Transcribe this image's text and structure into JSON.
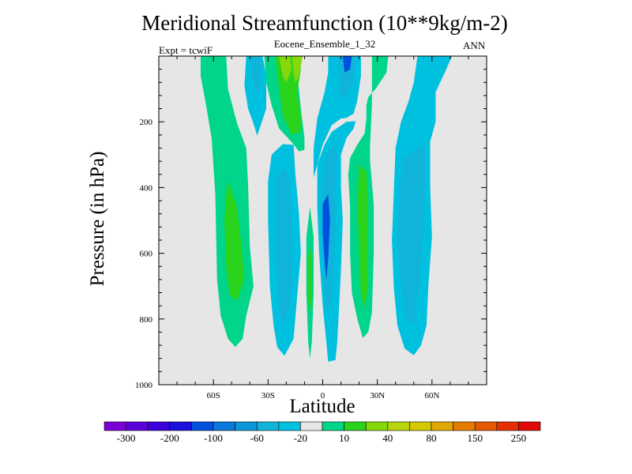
{
  "chart_data": {
    "type": "heatmap",
    "title": "Meridional Streamfunction (10**9kg/m-2)",
    "subtitle": "Eocene_Ensemble_1_32",
    "left_note": "Expt = tcwiF",
    "right_note": "ANN",
    "xlabel": "Latitude",
    "ylabel": "Pressure (in hPa)",
    "xlim": [
      -90,
      90
    ],
    "ylim": [
      1000,
      0
    ],
    "y_reversed": true,
    "grid": false,
    "background_color": "#e6e6e6",
    "x_ticks": [
      {
        "value": -60,
        "label": "60S"
      },
      {
        "value": -30,
        "label": "30S"
      },
      {
        "value": 0,
        "label": "0"
      },
      {
        "value": 30,
        "label": "30N"
      },
      {
        "value": 60,
        "label": "60N"
      }
    ],
    "y_ticks": [
      {
        "value": 200,
        "label": "200"
      },
      {
        "value": 400,
        "label": "400"
      },
      {
        "value": 600,
        "label": "600"
      },
      {
        "value": 800,
        "label": "800"
      },
      {
        "value": 1000,
        "label": "1000"
      }
    ],
    "colorbar": {
      "colors": [
        "#7a00d6",
        "#5b00d8",
        "#3c00da",
        "#1c10dc",
        "#0050e0",
        "#0a78dc",
        "#0a98d8",
        "#10b4d8",
        "#00c0e0",
        "#e6e6e6",
        "#00d58a",
        "#2ad41c",
        "#86d80c",
        "#b8d40c",
        "#d4c800",
        "#e0a800",
        "#e47c00",
        "#e45800",
        "#e43000",
        "#e00808"
      ],
      "tick_labels": [
        "-300",
        "-200",
        "-100",
        "-60",
        "-20",
        "10",
        "40",
        "80",
        "150",
        "250"
      ]
    },
    "regions": [
      {
        "level": 10,
        "color": "#00d58a",
        "points": [
          [
            -67,
            0
          ],
          [
            -53,
            0
          ],
          [
            -52,
            100
          ],
          [
            -47,
            205
          ],
          [
            -42,
            280
          ],
          [
            -41,
            390
          ],
          [
            -40,
            580
          ],
          [
            -38,
            700
          ],
          [
            -42,
            790
          ],
          [
            -44,
            860
          ],
          [
            -48,
            885
          ],
          [
            -52,
            860
          ],
          [
            -56,
            790
          ],
          [
            -58,
            680
          ],
          [
            -59,
            420
          ],
          [
            -61,
            250
          ],
          [
            -64,
            150
          ],
          [
            -67,
            60
          ]
        ]
      },
      {
        "level": 40,
        "color": "#2ad41c",
        "points": [
          [
            -52,
            380
          ],
          [
            -47,
            460
          ],
          [
            -45,
            560
          ],
          [
            -43,
            675
          ],
          [
            -47,
            745
          ],
          [
            -51,
            728
          ],
          [
            -53,
            650
          ],
          [
            -54,
            500
          ],
          [
            -53,
            420
          ]
        ]
      },
      {
        "level": -20,
        "color": "#00c0e0",
        "points": [
          [
            -42,
            0
          ],
          [
            -33,
            0
          ],
          [
            -31,
            60
          ],
          [
            -31,
            160
          ],
          [
            -34,
            210
          ],
          [
            -36,
            242
          ],
          [
            -38,
            205
          ],
          [
            -41,
            160
          ],
          [
            -43,
            90
          ]
        ]
      },
      {
        "level": -60,
        "color": "#10b4d8",
        "points": [
          [
            -40,
            0
          ],
          [
            -34,
            0
          ],
          [
            -34,
            60
          ],
          [
            -35,
            108
          ],
          [
            -37,
            105
          ],
          [
            -39,
            60
          ]
        ]
      },
      {
        "level": 10,
        "color": "#00d58a",
        "points": [
          [
            -32,
            0
          ],
          [
            -15,
            0
          ],
          [
            -14,
            50
          ],
          [
            -12,
            160
          ],
          [
            -10,
            250
          ],
          [
            -10,
            285
          ],
          [
            -13,
            290
          ],
          [
            -17,
            262
          ],
          [
            -24,
            220
          ],
          [
            -28,
            150
          ],
          [
            -31,
            80
          ]
        ]
      },
      {
        "level": 40,
        "color": "#2ad41c",
        "points": [
          [
            -26,
            0
          ],
          [
            -13,
            0
          ],
          [
            -12,
            40
          ],
          [
            -14,
            110
          ],
          [
            -12,
            180
          ],
          [
            -12,
            230
          ],
          [
            -17,
            240
          ],
          [
            -22,
            180
          ],
          [
            -24,
            100
          ]
        ]
      },
      {
        "level": 80,
        "color": "#86d80c",
        "points": [
          [
            -24,
            0
          ],
          [
            -18,
            0
          ],
          [
            -17,
            40
          ],
          [
            -20,
            80
          ],
          [
            -22,
            60
          ]
        ]
      },
      {
        "level": 80,
        "color": "#86d80c",
        "points": [
          [
            -17,
            0
          ],
          [
            -11,
            0
          ],
          [
            -13,
            60
          ],
          [
            -15,
            80
          ],
          [
            -16,
            50
          ]
        ]
      },
      {
        "level": 80,
        "color": "#86d80c",
        "points": [
          [
            7,
            0
          ],
          [
            10,
            0
          ],
          [
            10,
            5
          ],
          [
            8,
            5
          ]
        ]
      },
      {
        "level": -20,
        "color": "#00c0e0",
        "points": [
          [
            -28,
            300
          ],
          [
            -22,
            268
          ],
          [
            -16,
            270
          ],
          [
            -15,
            360
          ],
          [
            -13,
            480
          ],
          [
            -12,
            600
          ],
          [
            -14,
            730
          ],
          [
            -16,
            860
          ],
          [
            -21,
            912
          ],
          [
            -25,
            885
          ],
          [
            -27,
            820
          ],
          [
            -29,
            700
          ],
          [
            -30,
            500
          ],
          [
            -30,
            380
          ]
        ]
      },
      {
        "level": -60,
        "color": "#10b4d8",
        "points": [
          [
            -25,
            360
          ],
          [
            -21,
            340
          ],
          [
            -18,
            380
          ],
          [
            -17,
            520
          ],
          [
            -17,
            650
          ],
          [
            -18,
            760
          ],
          [
            -22,
            820
          ],
          [
            -24,
            780
          ],
          [
            -25,
            650
          ],
          [
            -26,
            520
          ]
        ]
      },
      {
        "level": 10,
        "color": "#00d58a",
        "points": [
          [
            -9,
            550
          ],
          [
            -7,
            460
          ],
          [
            -5,
            550
          ],
          [
            -5,
            720
          ],
          [
            -6,
            870
          ],
          [
            -7,
            920
          ],
          [
            -8,
            870
          ],
          [
            -9,
            720
          ]
        ]
      },
      {
        "level": 40,
        "color": "#2ad41c",
        "points": [
          [
            -8,
            610
          ],
          [
            -7,
            580
          ],
          [
            -6,
            620
          ],
          [
            -6,
            740
          ],
          [
            -7,
            780
          ],
          [
            -8,
            740
          ]
        ]
      },
      {
        "level": -20,
        "color": "#00c0e0",
        "points": [
          [
            3,
            0
          ],
          [
            21,
            0
          ],
          [
            21,
            60
          ],
          [
            19,
            135
          ],
          [
            17,
            175
          ],
          [
            13,
            188
          ],
          [
            10,
            190
          ],
          [
            5,
            210
          ],
          [
            0,
            270
          ],
          [
            -3,
            330
          ],
          [
            -5,
            370
          ],
          [
            -5,
            280
          ],
          [
            -3,
            190
          ],
          [
            1,
            110
          ],
          [
            3,
            50
          ]
        ]
      },
      {
        "level": -60,
        "color": "#10b4d8",
        "points": [
          [
            8,
            0
          ],
          [
            18,
            0
          ],
          [
            17,
            80
          ],
          [
            12,
            130
          ],
          [
            9,
            120
          ],
          [
            9,
            60
          ]
        ]
      },
      {
        "level": -100,
        "color": "#0050e0",
        "points": [
          [
            11,
            0
          ],
          [
            16,
            0
          ],
          [
            15,
            40
          ],
          [
            12,
            50
          ]
        ]
      },
      {
        "level": -20,
        "color": "#00c0e0",
        "points": [
          [
            5,
            230
          ],
          [
            13,
            200
          ],
          [
            18,
            198
          ],
          [
            17,
            220
          ],
          [
            13,
            250
          ],
          [
            10,
            300
          ],
          [
            10,
            400
          ],
          [
            11,
            500
          ],
          [
            10,
            650
          ],
          [
            9,
            760
          ],
          [
            8,
            870
          ],
          [
            7,
            925
          ],
          [
            3,
            930
          ],
          [
            2,
            870
          ],
          [
            0,
            760
          ],
          [
            -2,
            600
          ],
          [
            -3,
            460
          ],
          [
            -3,
            330
          ],
          [
            1,
            270
          ]
        ]
      },
      {
        "level": -60,
        "color": "#10b4d8",
        "points": [
          [
            2,
            300
          ],
          [
            6,
            270
          ],
          [
            8,
            300
          ],
          [
            7,
            400
          ],
          [
            7,
            520
          ],
          [
            6,
            640
          ],
          [
            5,
            740
          ],
          [
            3,
            780
          ],
          [
            1,
            740
          ],
          [
            0,
            620
          ],
          [
            -1,
            500
          ],
          [
            0,
            380
          ]
        ]
      },
      {
        "level": -100,
        "color": "#0050e0",
        "points": [
          [
            0,
            450
          ],
          [
            3,
            420
          ],
          [
            4,
            500
          ],
          [
            3,
            620
          ],
          [
            2,
            680
          ],
          [
            1,
            620
          ],
          [
            0,
            540
          ]
        ]
      },
      {
        "level": 10,
        "color": "#00d58a",
        "points": [
          [
            27,
            0
          ],
          [
            36,
            0
          ],
          [
            35,
            50
          ],
          [
            29,
            100
          ],
          [
            25,
            125
          ],
          [
            24,
            150
          ],
          [
            24,
            190
          ],
          [
            23,
            235
          ],
          [
            19,
            270
          ],
          [
            15,
            310
          ],
          [
            14,
            360
          ],
          [
            15,
            460
          ],
          [
            15,
            600
          ],
          [
            16,
            720
          ],
          [
            19,
            800
          ],
          [
            22,
            858
          ],
          [
            25,
            840
          ],
          [
            27,
            780
          ],
          [
            28,
            600
          ],
          [
            28,
            450
          ],
          [
            26,
            320
          ],
          [
            26,
            270
          ],
          [
            27,
            150
          ],
          [
            27,
            60
          ]
        ]
      },
      {
        "level": 40,
        "color": "#2ad41c",
        "points": [
          [
            20,
            330
          ],
          [
            24,
            350
          ],
          [
            25,
            450
          ],
          [
            25,
            600
          ],
          [
            25,
            700
          ],
          [
            23,
            765
          ],
          [
            21,
            730
          ],
          [
            20,
            600
          ],
          [
            19,
            450
          ]
        ]
      },
      {
        "level": -20,
        "color": "#00c0e0",
        "points": [
          [
            52,
            0
          ],
          [
            71,
            0
          ],
          [
            67,
            50
          ],
          [
            62,
            110
          ],
          [
            62,
            200
          ],
          [
            59,
            260
          ],
          [
            59,
            400
          ],
          [
            60,
            550
          ],
          [
            58,
            700
          ],
          [
            57,
            820
          ],
          [
            54,
            880
          ],
          [
            50,
            910
          ],
          [
            45,
            890
          ],
          [
            41,
            820
          ],
          [
            39,
            700
          ],
          [
            38,
            560
          ],
          [
            39,
            420
          ],
          [
            40,
            280
          ],
          [
            43,
            200
          ],
          [
            47,
            140
          ],
          [
            50,
            80
          ]
        ]
      },
      {
        "level": -60,
        "color": "#10b4d8",
        "points": [
          [
            44,
            310
          ],
          [
            50,
            290
          ],
          [
            56,
            270
          ],
          [
            56,
            400
          ],
          [
            55,
            550
          ],
          [
            53,
            700
          ],
          [
            50,
            820
          ],
          [
            46,
            800
          ],
          [
            43,
            700
          ],
          [
            41,
            560
          ],
          [
            42,
            420
          ]
        ]
      }
    ]
  }
}
